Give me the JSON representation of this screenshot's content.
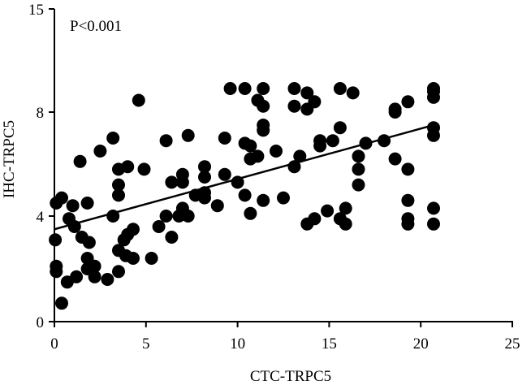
{
  "chart_data": {
    "type": "scatter",
    "xlabel": "CTC-TRPC5",
    "ylabel": "IHC-TRPC5",
    "annotation": "P<0.001",
    "xlim": [
      0,
      25
    ],
    "ylim": [
      0,
      15
    ],
    "x_ticks": [
      0,
      5,
      10,
      15,
      20,
      25
    ],
    "y_ticks": [
      0,
      4,
      8,
      15
    ],
    "x_tick_labels": [
      "0",
      "5",
      "10",
      "15",
      "20",
      "25"
    ],
    "y_tick_labels": [
      "0",
      "4",
      "8",
      "15"
    ],
    "grid": false,
    "marker_color": "#000000",
    "trendline": {
      "x": [
        0,
        20.7
      ],
      "y": [
        3.5,
        7.5
      ]
    },
    "points": [
      {
        "x": 0.05,
        "y": 3.1
      },
      {
        "x": 0.1,
        "y": 2.1
      },
      {
        "x": 0.1,
        "y": 1.9
      },
      {
        "x": 0.1,
        "y": 4.5
      },
      {
        "x": 0.4,
        "y": 0.7
      },
      {
        "x": 0.4,
        "y": 4.7
      },
      {
        "x": 0.7,
        "y": 1.5
      },
      {
        "x": 0.8,
        "y": 3.9
      },
      {
        "x": 1.0,
        "y": 4.4
      },
      {
        "x": 1.1,
        "y": 3.6
      },
      {
        "x": 1.2,
        "y": 1.7
      },
      {
        "x": 1.4,
        "y": 6.1
      },
      {
        "x": 1.5,
        "y": 3.2
      },
      {
        "x": 1.8,
        "y": 4.5
      },
      {
        "x": 1.8,
        "y": 2.4
      },
      {
        "x": 1.8,
        "y": 2.0
      },
      {
        "x": 1.9,
        "y": 3.0
      },
      {
        "x": 2.2,
        "y": 2.1
      },
      {
        "x": 2.2,
        "y": 1.7
      },
      {
        "x": 2.5,
        "y": 6.5
      },
      {
        "x": 2.9,
        "y": 1.6
      },
      {
        "x": 3.2,
        "y": 4.0
      },
      {
        "x": 3.2,
        "y": 7.0
      },
      {
        "x": 3.5,
        "y": 5.8
      },
      {
        "x": 3.5,
        "y": 5.2
      },
      {
        "x": 3.5,
        "y": 4.8
      },
      {
        "x": 3.5,
        "y": 2.7
      },
      {
        "x": 3.5,
        "y": 1.9
      },
      {
        "x": 3.8,
        "y": 3.1
      },
      {
        "x": 3.9,
        "y": 2.5
      },
      {
        "x": 4.0,
        "y": 5.9
      },
      {
        "x": 4.0,
        "y": 3.3
      },
      {
        "x": 4.3,
        "y": 3.5
      },
      {
        "x": 4.3,
        "y": 2.4
      },
      {
        "x": 4.6,
        "y": 8.8
      },
      {
        "x": 4.9,
        "y": 5.8
      },
      {
        "x": 5.3,
        "y": 2.4
      },
      {
        "x": 5.7,
        "y": 3.6
      },
      {
        "x": 6.1,
        "y": 4.0
      },
      {
        "x": 6.1,
        "y": 6.9
      },
      {
        "x": 6.4,
        "y": 3.2
      },
      {
        "x": 6.4,
        "y": 5.3
      },
      {
        "x": 6.8,
        "y": 4.0
      },
      {
        "x": 7.0,
        "y": 5.6
      },
      {
        "x": 7.0,
        "y": 5.3
      },
      {
        "x": 7.0,
        "y": 4.3
      },
      {
        "x": 7.3,
        "y": 7.1
      },
      {
        "x": 7.3,
        "y": 4.0
      },
      {
        "x": 7.7,
        "y": 4.8
      },
      {
        "x": 8.2,
        "y": 5.9
      },
      {
        "x": 8.2,
        "y": 5.5
      },
      {
        "x": 8.2,
        "y": 4.9
      },
      {
        "x": 8.2,
        "y": 4.7
      },
      {
        "x": 8.9,
        "y": 4.4
      },
      {
        "x": 9.3,
        "y": 7.0
      },
      {
        "x": 9.3,
        "y": 5.6
      },
      {
        "x": 9.6,
        "y": 9.6
      },
      {
        "x": 10.0,
        "y": 5.3
      },
      {
        "x": 10.4,
        "y": 9.6
      },
      {
        "x": 10.4,
        "y": 6.8
      },
      {
        "x": 10.4,
        "y": 4.8
      },
      {
        "x": 10.7,
        "y": 6.7
      },
      {
        "x": 10.7,
        "y": 6.2
      },
      {
        "x": 10.7,
        "y": 4.1
      },
      {
        "x": 11.1,
        "y": 6.3
      },
      {
        "x": 11.1,
        "y": 8.8
      },
      {
        "x": 11.4,
        "y": 9.6
      },
      {
        "x": 11.4,
        "y": 8.4
      },
      {
        "x": 11.4,
        "y": 7.3
      },
      {
        "x": 11.4,
        "y": 7.5
      },
      {
        "x": 11.4,
        "y": 4.6
      },
      {
        "x": 12.1,
        "y": 6.5
      },
      {
        "x": 12.5,
        "y": 4.7
      },
      {
        "x": 13.1,
        "y": 9.6
      },
      {
        "x": 13.1,
        "y": 8.4
      },
      {
        "x": 13.1,
        "y": 5.9
      },
      {
        "x": 13.4,
        "y": 6.3
      },
      {
        "x": 13.8,
        "y": 9.3
      },
      {
        "x": 13.8,
        "y": 8.2
      },
      {
        "x": 13.8,
        "y": 3.7
      },
      {
        "x": 14.2,
        "y": 8.7
      },
      {
        "x": 14.2,
        "y": 3.9
      },
      {
        "x": 14.5,
        "y": 6.9
      },
      {
        "x": 14.5,
        "y": 6.7
      },
      {
        "x": 14.9,
        "y": 4.2
      },
      {
        "x": 15.2,
        "y": 6.9
      },
      {
        "x": 15.6,
        "y": 9.6
      },
      {
        "x": 15.6,
        "y": 7.4
      },
      {
        "x": 15.6,
        "y": 3.9
      },
      {
        "x": 15.9,
        "y": 4.3
      },
      {
        "x": 15.9,
        "y": 3.7
      },
      {
        "x": 16.3,
        "y": 9.3
      },
      {
        "x": 16.6,
        "y": 6.3
      },
      {
        "x": 16.6,
        "y": 5.8
      },
      {
        "x": 16.6,
        "y": 5.2
      },
      {
        "x": 17.0,
        "y": 6.8
      },
      {
        "x": 18.0,
        "y": 6.9
      },
      {
        "x": 18.6,
        "y": 8.2
      },
      {
        "x": 18.6,
        "y": 8.0
      },
      {
        "x": 18.6,
        "y": 6.2
      },
      {
        "x": 19.3,
        "y": 8.7
      },
      {
        "x": 19.3,
        "y": 5.8
      },
      {
        "x": 19.3,
        "y": 4.6
      },
      {
        "x": 19.3,
        "y": 3.9
      },
      {
        "x": 19.3,
        "y": 3.7
      },
      {
        "x": 20.7,
        "y": 9.6
      },
      {
        "x": 20.7,
        "y": 9.4
      },
      {
        "x": 20.7,
        "y": 9.0
      },
      {
        "x": 20.7,
        "y": 7.4
      },
      {
        "x": 20.7,
        "y": 7.1
      },
      {
        "x": 20.7,
        "y": 4.3
      },
      {
        "x": 20.7,
        "y": 3.7
      }
    ]
  }
}
